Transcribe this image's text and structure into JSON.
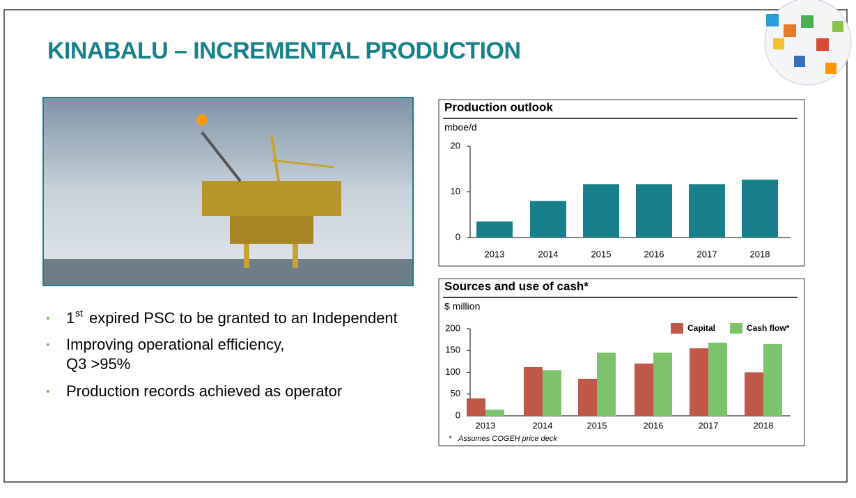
{
  "title": "KINABALU – INCREMENTAL PRODUCTION",
  "bullets": [
    {
      "number": "1",
      "superscript": "st",
      "text": "expired PSC to be granted to an Independent"
    },
    {
      "lines": [
        "Improving operational efficiency,",
        "Q3 >95%"
      ]
    },
    {
      "text": "Production records achieved as operator"
    }
  ],
  "chart_data": [
    {
      "type": "bar",
      "title": "Production outlook",
      "y_label": "mboe/d",
      "categories": [
        "2013",
        "2014",
        "2015",
        "2016",
        "2017",
        "2018"
      ],
      "values": [
        3.5,
        8,
        11.7,
        11.7,
        11.7,
        12.7
      ],
      "color": "#17808a",
      "ylim": [
        0,
        20
      ],
      "yticks": [
        0,
        10,
        20
      ]
    },
    {
      "type": "bar",
      "title": "Sources and use of cash*",
      "y_label": "$ million",
      "categories": [
        "2013",
        "2014",
        "2015",
        "2016",
        "2017",
        "2018"
      ],
      "series": [
        {
          "name": "Capital",
          "color": "#c0584a",
          "values": [
            40,
            112,
            85,
            120,
            155,
            100
          ]
        },
        {
          "name": "Cash flow*",
          "color": "#7dc36b",
          "values": [
            14,
            105,
            145,
            145,
            168,
            165
          ]
        }
      ],
      "ylim": [
        0,
        200
      ],
      "yticks": [
        0,
        50,
        100,
        150,
        200
      ],
      "legend": "top-right",
      "footnote": {
        "marker": "*",
        "text": "Assumes COGEH price deck"
      }
    }
  ]
}
